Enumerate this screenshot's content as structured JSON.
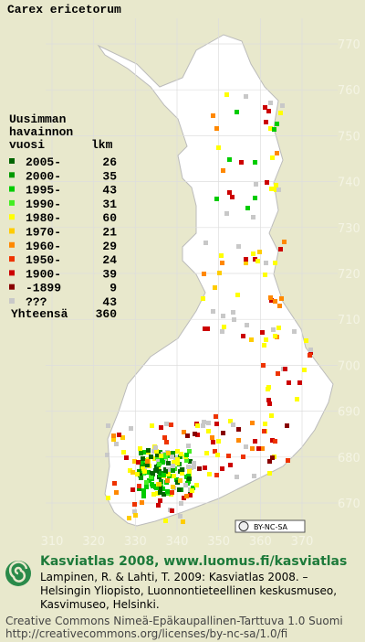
{
  "title": "Carex ericetorum",
  "legend": {
    "heading": [
      "Uusimman",
      "havainnon",
      "vuosi"
    ],
    "count_heading": "lkm",
    "items": [
      {
        "label": "2005-",
        "count": 26,
        "color": "#006400"
      },
      {
        "label": "2000-",
        "count": 35,
        "color": "#009a00"
      },
      {
        "label": "1995-",
        "count": 43,
        "color": "#00cc00"
      },
      {
        "label": "1990-",
        "count": 31,
        "color": "#44ee22"
      },
      {
        "label": "1980-",
        "count": 60,
        "color": "#ffff00"
      },
      {
        "label": "1970-",
        "count": 21,
        "color": "#ffcc00"
      },
      {
        "label": "1960-",
        "count": 29,
        "color": "#ff8800"
      },
      {
        "label": "1950-",
        "count": 24,
        "color": "#ee3300"
      },
      {
        "label": "1900-",
        "count": 39,
        "color": "#cc0000"
      },
      {
        "label": "-1899",
        "count": 9,
        "color": "#880000"
      },
      {
        "label": "???",
        "count": 43,
        "color": "#c8c8c8"
      }
    ],
    "total": {
      "label": "Yhteensä",
      "count": 360
    }
  },
  "map": {
    "xlim": [
      310,
      370
    ],
    "ylim": [
      670,
      770
    ],
    "xticks": [
      310,
      320,
      330,
      340,
      350,
      360,
      370
    ],
    "yticks": [
      670,
      680,
      690,
      700,
      710,
      720,
      730,
      740,
      750,
      760,
      770
    ]
  },
  "license_badge": "BY-NC-SA",
  "footer": {
    "title": "Kasviatlas 2008, www.luomus.fi/kasviatlas",
    "citation": [
      "Lampinen, R. & Lahti, T. 2009: Kasviatlas 2008. –",
      "Helsingin Yliopisto, Luonnontieteellinen keskusmuseo,",
      "Kasvimuseo, Helsinki."
    ],
    "license": [
      "Creative Commons Nimeä-Epäkaupallinen-Tarttuva 1.0 Suomi",
      "http://creativecommons.org/licenses/by-nc-sa/1.0/fi"
    ]
  }
}
